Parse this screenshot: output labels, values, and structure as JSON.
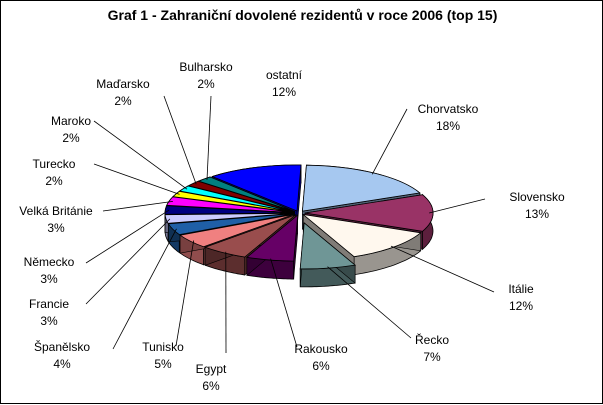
{
  "chart_data": {
    "type": "pie",
    "title": "Graf 1 - Zahraniční dovolené rezidentů v roce 2006 (top 15)",
    "slices": [
      {
        "label": "Chorvatsko",
        "value": 18,
        "value_label": "18%",
        "color": "#a6c8f0"
      },
      {
        "label": "Slovensko",
        "value": 13,
        "value_label": "13%",
        "color": "#993366"
      },
      {
        "label": "Itálie",
        "value": 12,
        "value_label": "12%",
        "color": "#fff8ee"
      },
      {
        "label": "Řecko",
        "value": 7,
        "value_label": "7%",
        "color": "#6f9696"
      },
      {
        "label": "Rakousko",
        "value": 6,
        "value_label": "6%",
        "color": "#660066"
      },
      {
        "label": "Egypt",
        "value": 6,
        "value_label": "6%",
        "color": "#994d4d"
      },
      {
        "label": "Tunisko",
        "value": 5,
        "value_label": "5%",
        "color": "#f08080"
      },
      {
        "label": "Španělsko",
        "value": 4,
        "value_label": "4%",
        "color": "#1f5fa6"
      },
      {
        "label": "Francie",
        "value": 3,
        "value_label": "3%",
        "color": "#ccccff"
      },
      {
        "label": "Německo",
        "value": 3,
        "value_label": "3%",
        "color": "#000080"
      },
      {
        "label": "Velká Británie",
        "value": 3,
        "value_label": "3%",
        "color": "#ff00ff"
      },
      {
        "label": "Turecko",
        "value": 2,
        "value_label": "2%",
        "color": "#ffff00"
      },
      {
        "label": "Maroko",
        "value": 2,
        "value_label": "2%",
        "color": "#00ffff"
      },
      {
        "label": "Maďarsko",
        "value": 2,
        "value_label": "2%",
        "color": "#800000"
      },
      {
        "label": "Bulharsko",
        "value": 2,
        "value_label": "2%",
        "color": "#008080"
      },
      {
        "label": "ostatní",
        "value": 12,
        "value_label": "12%",
        "color": "#0000ff"
      }
    ],
    "legend": "none"
  }
}
